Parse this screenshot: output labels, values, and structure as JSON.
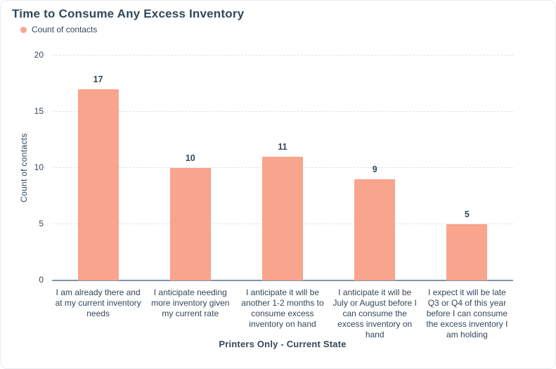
{
  "header": {
    "title": "Time to Consume Any Excess Inventory"
  },
  "legend": {
    "items": [
      {
        "label": "Count of contacts",
        "color": "#f9a48c"
      }
    ]
  },
  "chart_data": {
    "type": "bar",
    "title": "Time to Consume Any Excess Inventory",
    "series_name": "Count of contacts",
    "categories": [
      "I am already there and at my current inventory needs",
      "I anticipate needing more inventory given my current rate",
      "I anticipate it will be another 1-2 months to consume excess inventory on hand",
      "I anticipate it will be July or August before I can consume the excess inventory on hand",
      "I expect it will be late Q3 or Q4 of this year before I can consume the excess inventory I am holding"
    ],
    "values": [
      17,
      10,
      11,
      9,
      5
    ],
    "xlabel": "Printers Only - Current State",
    "ylabel": "Count of contacts",
    "ylim": [
      0,
      20
    ],
    "yticks": [
      0,
      5,
      10,
      15,
      20
    ],
    "grid": "horizontal-dashed",
    "legend_position": "top-left",
    "colors": {
      "bar": "#f9a48c",
      "text": "#33475b",
      "axis_line": "#8095ab",
      "gridline": "#dce3ea"
    }
  }
}
